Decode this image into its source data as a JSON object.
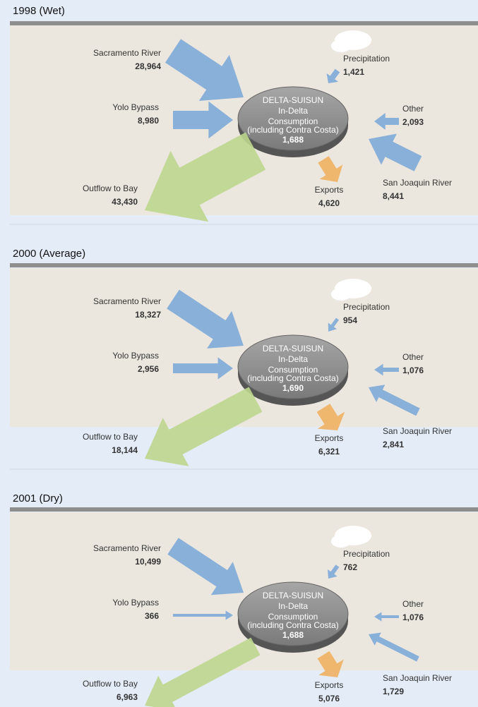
{
  "panels": [
    {
      "title": "1998 (Wet)",
      "center": {
        "title": "DELTA-SUISUN",
        "line1": "In-Delta",
        "line2": "Consumption",
        "note": "(including Contra Costa)",
        "value": "1,688"
      },
      "flows": [
        {
          "label": "Sacramento River",
          "value": "28,964"
        },
        {
          "label": "Yolo Bypass",
          "value": "8,980"
        },
        {
          "label": "Precipitation",
          "value": "1,421"
        },
        {
          "label": "Other",
          "value": "2,093"
        },
        {
          "label": "San Joaquin River",
          "value": "8,441"
        },
        {
          "label": "Exports",
          "value": "4,620"
        },
        {
          "label": "Outflow to Bay",
          "value": "43,430"
        }
      ]
    },
    {
      "title": "2000 (Average)",
      "center": {
        "title": "DELTA-SUISUN",
        "line1": "In-Delta",
        "line2": "Consumption",
        "note": "(including Contra Costa)",
        "value": "1,690"
      },
      "flows": [
        {
          "label": "Sacramento River",
          "value": "18,327"
        },
        {
          "label": "Yolo Bypass",
          "value": "2,956"
        },
        {
          "label": "Precipitation",
          "value": "954"
        },
        {
          "label": "Other",
          "value": "1,076"
        },
        {
          "label": "San Joaquin River",
          "value": "2,841"
        },
        {
          "label": "Exports",
          "value": "6,321"
        },
        {
          "label": "Outflow to Bay",
          "value": "18,144"
        }
      ]
    },
    {
      "title": "2001 (Dry)",
      "center": {
        "title": "DELTA-SUISUN",
        "line1": "In-Delta",
        "line2": "Consumption",
        "note": "(including Contra Costa)",
        "value": "1,688"
      },
      "flows": [
        {
          "label": "Sacramento River",
          "value": "10,499"
        },
        {
          "label": "Yolo Bypass",
          "value": "366"
        },
        {
          "label": "Precipitation",
          "value": "762"
        },
        {
          "label": "Other",
          "value": "1,076"
        },
        {
          "label": "San Joaquin River",
          "value": "1,729"
        },
        {
          "label": "Exports",
          "value": "5,076"
        },
        {
          "label": "Outflow to Bay",
          "value": "6,963"
        }
      ]
    }
  ]
}
